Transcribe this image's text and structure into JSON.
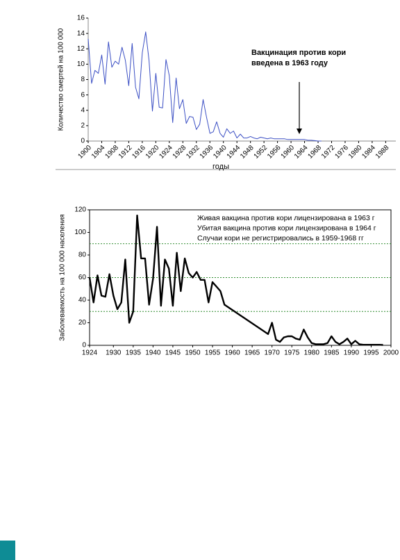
{
  "chart_data": [
    {
      "type": "line",
      "ylabel": "Количество смертей на 100 000",
      "xlabel": "годы",
      "annotation": [
        "Вакцинация против кори",
        "введена в 1963 году"
      ],
      "x": [
        1900,
        1901,
        1902,
        1903,
        1904,
        1905,
        1906,
        1907,
        1908,
        1909,
        1910,
        1911,
        1912,
        1913,
        1914,
        1915,
        1916,
        1917,
        1918,
        1919,
        1920,
        1921,
        1922,
        1923,
        1924,
        1925,
        1926,
        1927,
        1928,
        1929,
        1930,
        1931,
        1932,
        1933,
        1934,
        1935,
        1936,
        1937,
        1938,
        1939,
        1940,
        1941,
        1942,
        1943,
        1944,
        1945,
        1946,
        1947,
        1948,
        1949,
        1950,
        1951,
        1952,
        1953,
        1954,
        1955,
        1956,
        1957,
        1958,
        1959,
        1960,
        1961,
        1962,
        1963,
        1964,
        1965,
        1966,
        1967,
        1968,
        1969
      ],
      "values": [
        13.3,
        7.5,
        9.2,
        8.8,
        11.2,
        7.4,
        12.9,
        9.6,
        10.4,
        10,
        12.2,
        10.5,
        7.2,
        12.7,
        7,
        5.5,
        11.5,
        14.2,
        10.5,
        3.9,
        8.8,
        4.4,
        4.3,
        10.6,
        8.5,
        2.4,
        8.2,
        4.2,
        5.4,
        2.3,
        3.2,
        3.1,
        1.5,
        2.2,
        5.4,
        3.1,
        1.0,
        1.2,
        2.5,
        1.0,
        0.5,
        1.6,
        1.0,
        1.3,
        0.4,
        0.9,
        0.4,
        0.4,
        0.6,
        0.4,
        0.3,
        0.5,
        0.4,
        0.3,
        0.4,
        0.3,
        0.3,
        0.3,
        0.3,
        0.2,
        0.2,
        0.2,
        0.2,
        0.2,
        0.2,
        0.1,
        0.1,
        0.05,
        0,
        0
      ],
      "color": "#3b4fc4",
      "xlim": [
        1900,
        1991
      ],
      "xticks": [
        1900,
        1904,
        1908,
        1912,
        1916,
        1920,
        1924,
        1928,
        1932,
        1936,
        1940,
        1944,
        1948,
        1952,
        1956,
        1960,
        1964,
        1968,
        1972,
        1976,
        1980,
        1984,
        1988
      ],
      "ylim": [
        0,
        16
      ],
      "yticks": [
        0,
        2,
        4,
        6,
        8,
        10,
        12,
        14,
        16
      ]
    },
    {
      "type": "line",
      "ylabel": "Заболеваемость на 100 000 населения",
      "annotation": [
        "Живая вакцина против кори лицензирована в 1963 г",
        "Убитая вакцина против кори лицензирована в 1964 г",
        "Случаи кори не регистрировались в 1959-1968 гг"
      ],
      "x": [
        1924,
        1925,
        1926,
        1927,
        1928,
        1929,
        1930,
        1931,
        1932,
        1933,
        1934,
        1935,
        1936,
        1937,
        1938,
        1939,
        1940,
        1941,
        1942,
        1943,
        1944,
        1945,
        1946,
        1947,
        1948,
        1949,
        1950,
        1951,
        1952,
        1953,
        1954,
        1955,
        1956,
        1957,
        1958,
        1969,
        1970,
        1971,
        1972,
        1973,
        1974,
        1975,
        1976,
        1977,
        1978,
        1979,
        1980,
        1981,
        1982,
        1983,
        1984,
        1985,
        1986,
        1987,
        1988,
        1989,
        1990,
        1991,
        1992,
        1993,
        1994,
        1995,
        1996,
        1997,
        1998
      ],
      "values": [
        60,
        38,
        62,
        44,
        43,
        63,
        44,
        32,
        38,
        76,
        20,
        30,
        115,
        77,
        77,
        36,
        59,
        105,
        35,
        76,
        68,
        35,
        82,
        48,
        77,
        64,
        60,
        65,
        58,
        58,
        38,
        56,
        52,
        48,
        36,
        10,
        20,
        5,
        3,
        7,
        8,
        8,
        6,
        5,
        14,
        7,
        2,
        1,
        1,
        1,
        2,
        8,
        3,
        1,
        3,
        6,
        1,
        4,
        1,
        0.5,
        0.5,
        0.5,
        0.5,
        0.5,
        0.3
      ],
      "color": "#000000",
      "xlim": [
        1924,
        2000
      ],
      "xticks": [
        1924,
        1930,
        1935,
        1940,
        1945,
        1950,
        1955,
        1960,
        1965,
        1970,
        1975,
        1980,
        1985,
        1990,
        1995,
        2000
      ],
      "ylim": [
        0,
        120
      ],
      "yticks": [
        0,
        20,
        40,
        60,
        80,
        100,
        120
      ],
      "grid_values": [
        30,
        60,
        90
      ],
      "grid_color": "#2e8b2e"
    }
  ]
}
